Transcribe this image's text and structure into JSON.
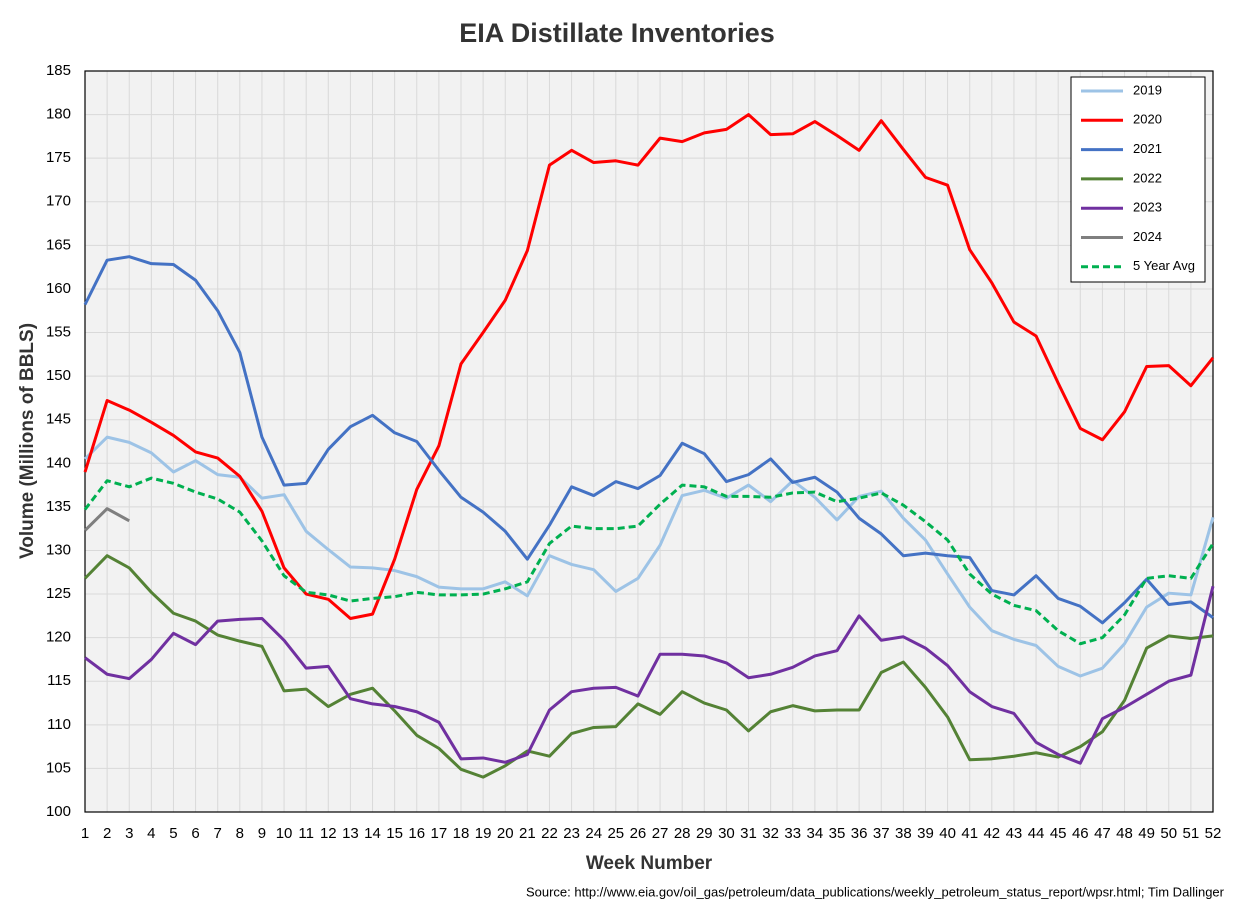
{
  "chart_data": {
    "type": "line",
    "title": "EIA Distillate Inventories",
    "x_label": "Week Number",
    "y_label": "Volume (Millions of BBLS)",
    "source": "Source: http://www.eia.gov/oil_gas/petroleum/data_publications/weekly_petroleum_status_report/wpsr.html; Tim Dallinger",
    "x": [
      1,
      2,
      3,
      4,
      5,
      6,
      7,
      8,
      9,
      10,
      11,
      12,
      13,
      14,
      15,
      16,
      17,
      18,
      19,
      20,
      21,
      22,
      23,
      24,
      25,
      26,
      27,
      28,
      29,
      30,
      31,
      32,
      33,
      34,
      35,
      36,
      37,
      38,
      39,
      40,
      41,
      42,
      43,
      44,
      45,
      46,
      47,
      48,
      49,
      50,
      51,
      52
    ],
    "xlim": [
      1,
      52
    ],
    "xticks": [
      1,
      2,
      3,
      4,
      5,
      6,
      7,
      8,
      9,
      10,
      11,
      12,
      13,
      14,
      15,
      16,
      17,
      18,
      19,
      20,
      21,
      22,
      23,
      24,
      25,
      26,
      27,
      28,
      29,
      30,
      31,
      32,
      33,
      34,
      35,
      36,
      37,
      38,
      39,
      40,
      41,
      42,
      43,
      44,
      45,
      46,
      47,
      48,
      49,
      50,
      51,
      52
    ],
    "ylim": [
      100,
      185
    ],
    "yticks": [
      100,
      105,
      110,
      115,
      120,
      125,
      130,
      135,
      140,
      145,
      150,
      155,
      160,
      165,
      170,
      175,
      180,
      185
    ],
    "grid": true,
    "legend": "upper right",
    "series": [
      {
        "name": "2019",
        "color": "#9dc3e6",
        "dashed": false,
        "values": [
          140.5,
          143,
          142.4,
          141.2,
          139,
          140.3,
          138.7,
          138.4,
          136,
          136.4,
          132.2,
          130.1,
          128.1,
          128,
          127.7,
          127,
          125.8,
          125.6,
          125.6,
          126.4,
          124.8,
          129.4,
          128.4,
          127.8,
          125.3,
          126.8,
          130.6,
          136.3,
          136.9,
          136,
          137.5,
          135.6,
          138,
          136.1,
          133.5,
          136.2,
          136.8,
          133.7,
          131.2,
          127.3,
          123.5,
          120.8,
          119.8,
          119.1,
          116.7,
          115.6,
          116.5,
          119.3,
          123.5,
          125.1,
          124.9,
          133.8
        ]
      },
      {
        "name": "2020",
        "color": "#ff0000",
        "dashed": false,
        "values": [
          139,
          147.2,
          146.1,
          144.7,
          143.2,
          141.3,
          140.6,
          138.5,
          134.5,
          128,
          125,
          124.4,
          122.2,
          122.7,
          129,
          137,
          142,
          151.4,
          155,
          158.7,
          164.4,
          174.2,
          175.9,
          174.5,
          174.7,
          174.2,
          177.3,
          176.9,
          177.9,
          178.3,
          180,
          177.7,
          177.8,
          179.2,
          177.6,
          175.9,
          179.3,
          176,
          172.8,
          171.9,
          164.5,
          160.7,
          156.2,
          154.6,
          149.2,
          144,
          142.7,
          145.9,
          151.1,
          151.2,
          148.9,
          152.1
        ]
      },
      {
        "name": "2021",
        "color": "#4472c4",
        "dashed": false,
        "values": [
          158.2,
          163.3,
          163.7,
          162.9,
          162.8,
          161,
          157.5,
          152.7,
          143,
          137.5,
          137.7,
          141.6,
          144.2,
          145.5,
          143.5,
          142.5,
          139.2,
          136.1,
          134.4,
          132.2,
          129,
          132.9,
          137.3,
          136.3,
          137.9,
          137.1,
          138.6,
          142.3,
          141.1,
          137.9,
          138.7,
          140.5,
          137.8,
          138.4,
          136.7,
          133.7,
          131.9,
          129.4,
          129.7,
          129.4,
          129.2,
          125.4,
          124.9,
          127.1,
          124.5,
          123.6,
          121.7,
          124,
          126.7,
          123.8,
          124.1,
          122.3
        ]
      },
      {
        "name": "2022",
        "color": "#548235",
        "dashed": false,
        "values": [
          126.8,
          129.4,
          128,
          125.2,
          122.8,
          121.9,
          120.3,
          119.6,
          119,
          113.9,
          114.1,
          112.1,
          113.5,
          114.2,
          111.6,
          108.8,
          107.3,
          104.9,
          104,
          105.3,
          107,
          106.4,
          109,
          109.7,
          109.8,
          112.4,
          111.2,
          113.8,
          112.5,
          111.7,
          109.3,
          111.5,
          112.2,
          111.6,
          111.7,
          111.7,
          116,
          117.2,
          114.3,
          110.9,
          106,
          106.1,
          106.4,
          106.8,
          106.3,
          107.5,
          109.2,
          112.8,
          118.8,
          120.2,
          119.9,
          120.2
        ]
      },
      {
        "name": "2023",
        "color": "#7030a0",
        "dashed": false,
        "values": [
          117.7,
          115.8,
          115.3,
          117.5,
          120.5,
          119.2,
          121.9,
          122.1,
          122.2,
          119.7,
          116.5,
          116.7,
          113,
          112.4,
          112.1,
          111.5,
          110.3,
          106.1,
          106.2,
          105.7,
          106.6,
          111.7,
          113.8,
          114.2,
          114.3,
          113.3,
          118.1,
          118.1,
          117.9,
          117.1,
          115.4,
          115.8,
          116.6,
          117.9,
          118.5,
          122.5,
          119.7,
          120.1,
          118.8,
          116.8,
          113.8,
          112.1,
          111.3,
          108,
          106.6,
          105.6,
          110.7,
          112,
          113.5,
          115,
          115.7,
          125.9
        ]
      },
      {
        "name": "2024",
        "color": "#7f7f7f",
        "dashed": false,
        "values": [
          132.3,
          134.8,
          133.4,
          null,
          null,
          null,
          null,
          null,
          null,
          null,
          null,
          null,
          null,
          null,
          null,
          null,
          null,
          null,
          null,
          null,
          null,
          null,
          null,
          null,
          null,
          null,
          null,
          null,
          null,
          null,
          null,
          null,
          null,
          null,
          null,
          null,
          null,
          null,
          null,
          null,
          null,
          null,
          null,
          null,
          null,
          null,
          null,
          null,
          null,
          null,
          null,
          null
        ]
      },
      {
        "name": "5 Year Avg",
        "color": "#00b050",
        "dashed": true,
        "values": [
          134.7,
          138,
          137.3,
          138.3,
          137.7,
          136.7,
          135.9,
          134.4,
          131.1,
          127.1,
          125.2,
          124.9,
          124.2,
          124.5,
          124.7,
          125.2,
          124.9,
          124.9,
          125,
          125.6,
          126.4,
          130.8,
          132.8,
          132.5,
          132.5,
          132.8,
          135.3,
          137.5,
          137.3,
          136.2,
          136.2,
          136.1,
          136.6,
          136.7,
          135.6,
          136,
          136.6,
          135.2,
          133.3,
          131.2,
          127.3,
          125,
          123.7,
          123.1,
          120.8,
          119.3,
          120,
          122.6,
          126.8,
          127.1,
          126.8,
          130.8
        ]
      }
    ]
  }
}
